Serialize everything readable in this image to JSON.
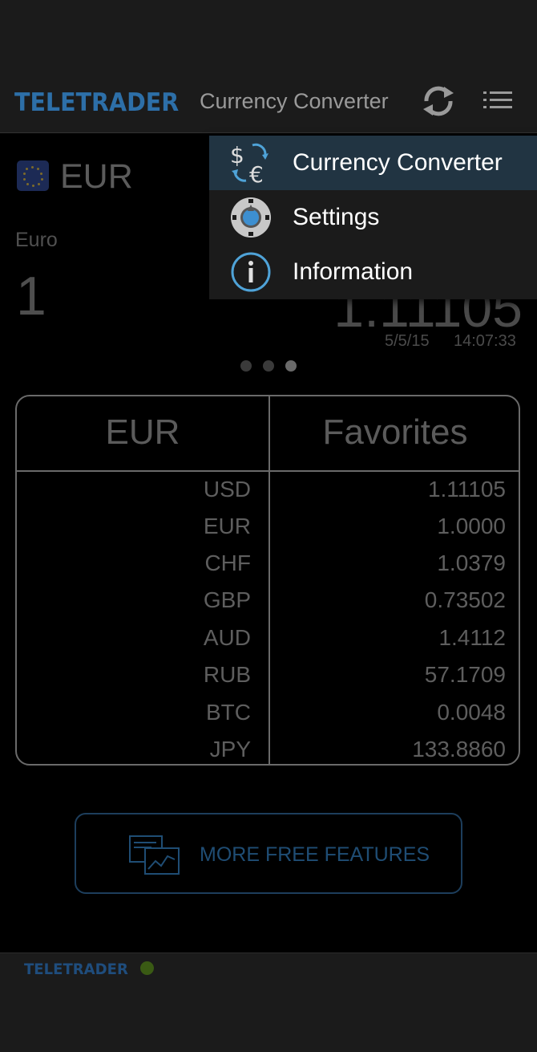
{
  "header": {
    "logo_text": "TELETRADER",
    "title": "Currency Converter",
    "icons": [
      "refresh-icon",
      "menu-list-icon"
    ]
  },
  "converter": {
    "currency_code": "EUR",
    "currency_name": "Euro",
    "amount": "1",
    "rate_display": "1.11105",
    "date": "5/5/15",
    "time": "14:07:33",
    "page_indicator": {
      "count": 3,
      "active_index": 2
    }
  },
  "table": {
    "headers": [
      "EUR",
      "Favorites"
    ],
    "rows": [
      {
        "code": "USD",
        "value": "1.11105"
      },
      {
        "code": "EUR",
        "value": "1.0000"
      },
      {
        "code": "CHF",
        "value": "1.0379"
      },
      {
        "code": "GBP",
        "value": "0.73502"
      },
      {
        "code": "AUD",
        "value": "1.4112"
      },
      {
        "code": "RUB",
        "value": "57.1709"
      },
      {
        "code": "BTC",
        "value": "0.0048"
      },
      {
        "code": "JPY",
        "value": "133.8860"
      }
    ]
  },
  "more_button": {
    "label": "MORE FREE FEATURES",
    "icon": "chart-document-icon"
  },
  "footer": {
    "logo_text": "TELETRADER",
    "status": "connected"
  },
  "menu": {
    "items": [
      {
        "label": "Currency Converter",
        "icon": "currency-exchange-icon",
        "selected": true
      },
      {
        "label": "Settings",
        "icon": "settings-gear-icon",
        "selected": false
      },
      {
        "label": "Information",
        "icon": "info-icon",
        "selected": false
      }
    ]
  },
  "colors": {
    "brand": "#2d6fa8",
    "selected_bg": "#213442",
    "status_led": "#3a5a14"
  }
}
